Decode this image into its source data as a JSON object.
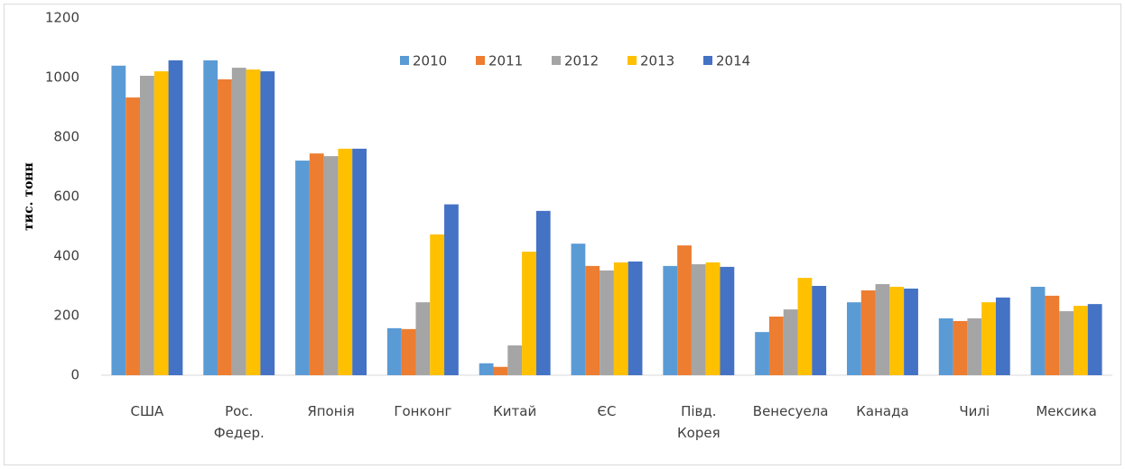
{
  "chart_data": {
    "type": "bar",
    "y_label": "тис. тонн",
    "categories": [
      "США",
      "Рос.\nФедер.",
      "Японія",
      "Гонконг",
      "Китай",
      "ЄС",
      "Півд.\nКорея",
      "Венесуела",
      "Канада",
      "Чилі",
      "Мексика"
    ],
    "series": [
      {
        "name": "2010",
        "color": "#5b9bd5",
        "values": [
          1040,
          1058,
          721,
          158,
          40,
          442,
          367,
          145,
          245,
          191,
          297
        ]
      },
      {
        "name": "2011",
        "color": "#ed7d31",
        "values": [
          933,
          994,
          745,
          155,
          28,
          367,
          436,
          197,
          285,
          182,
          267
        ]
      },
      {
        "name": "2012",
        "color": "#a5a5a5",
        "values": [
          1006,
          1033,
          736,
          245,
          100,
          352,
          373,
          221,
          306,
          191,
          215
        ]
      },
      {
        "name": "2013",
        "color": "#ffc000",
        "values": [
          1021,
          1027,
          761,
          473,
          415,
          379,
          379,
          327,
          297,
          245,
          233
        ]
      },
      {
        "name": "2014",
        "color": "#4472c4",
        "values": [
          1058,
          1021,
          761,
          574,
          552,
          382,
          364,
          300,
          291,
          261,
          239
        ]
      }
    ],
    "ylim": [
      0,
      1200
    ],
    "yticks": [
      0,
      200,
      400,
      600,
      800,
      1000,
      1200
    ],
    "grid": false,
    "legend": "top"
  }
}
